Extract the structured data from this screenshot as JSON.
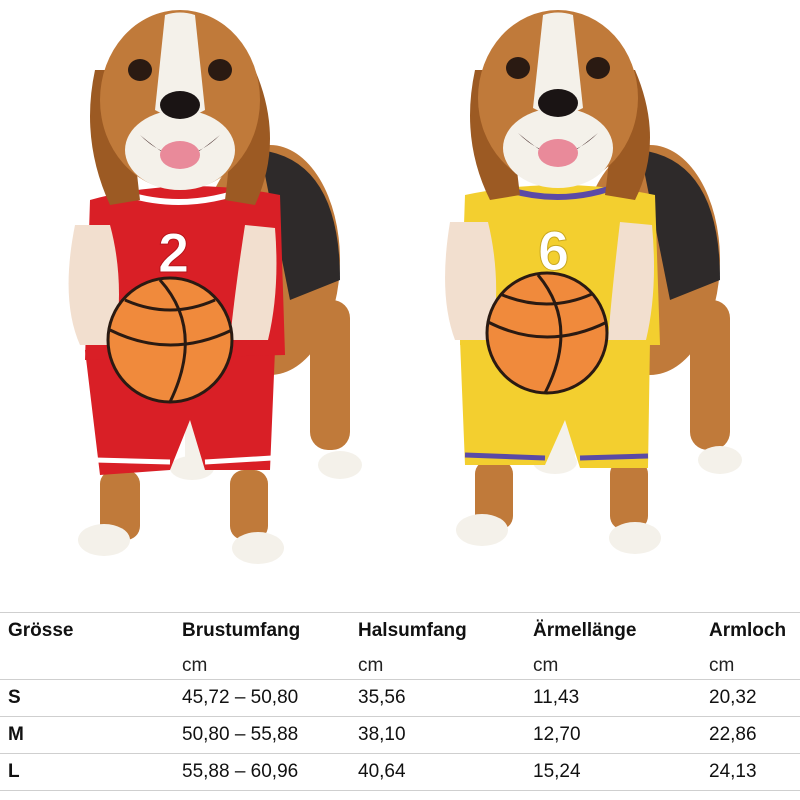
{
  "photo": {
    "dogs": [
      {
        "jersey_number": "2",
        "jersey_color": "#d91f26",
        "trim_color": "#ffffff"
      },
      {
        "jersey_number": "6",
        "jersey_color": "#f3cf2f",
        "trim_color": "#5b4aa6"
      }
    ],
    "ball_color": "#f08a3c"
  },
  "size_table": {
    "headers": [
      "Grösse",
      "Brustumfang",
      "Halsumfang",
      "Ärmellänge",
      "Armloch"
    ],
    "units": [
      "",
      "cm",
      "cm",
      "cm",
      "cm"
    ],
    "rows": [
      [
        "S",
        "45,72 – 50,80",
        "35,56",
        "11,43",
        "20,32"
      ],
      [
        "M",
        "50,80 – 55,88",
        "38,10",
        "12,70",
        "22,86"
      ],
      [
        "L",
        "55,88 – 60,96",
        "40,64",
        "15,24",
        "24,13"
      ]
    ]
  }
}
